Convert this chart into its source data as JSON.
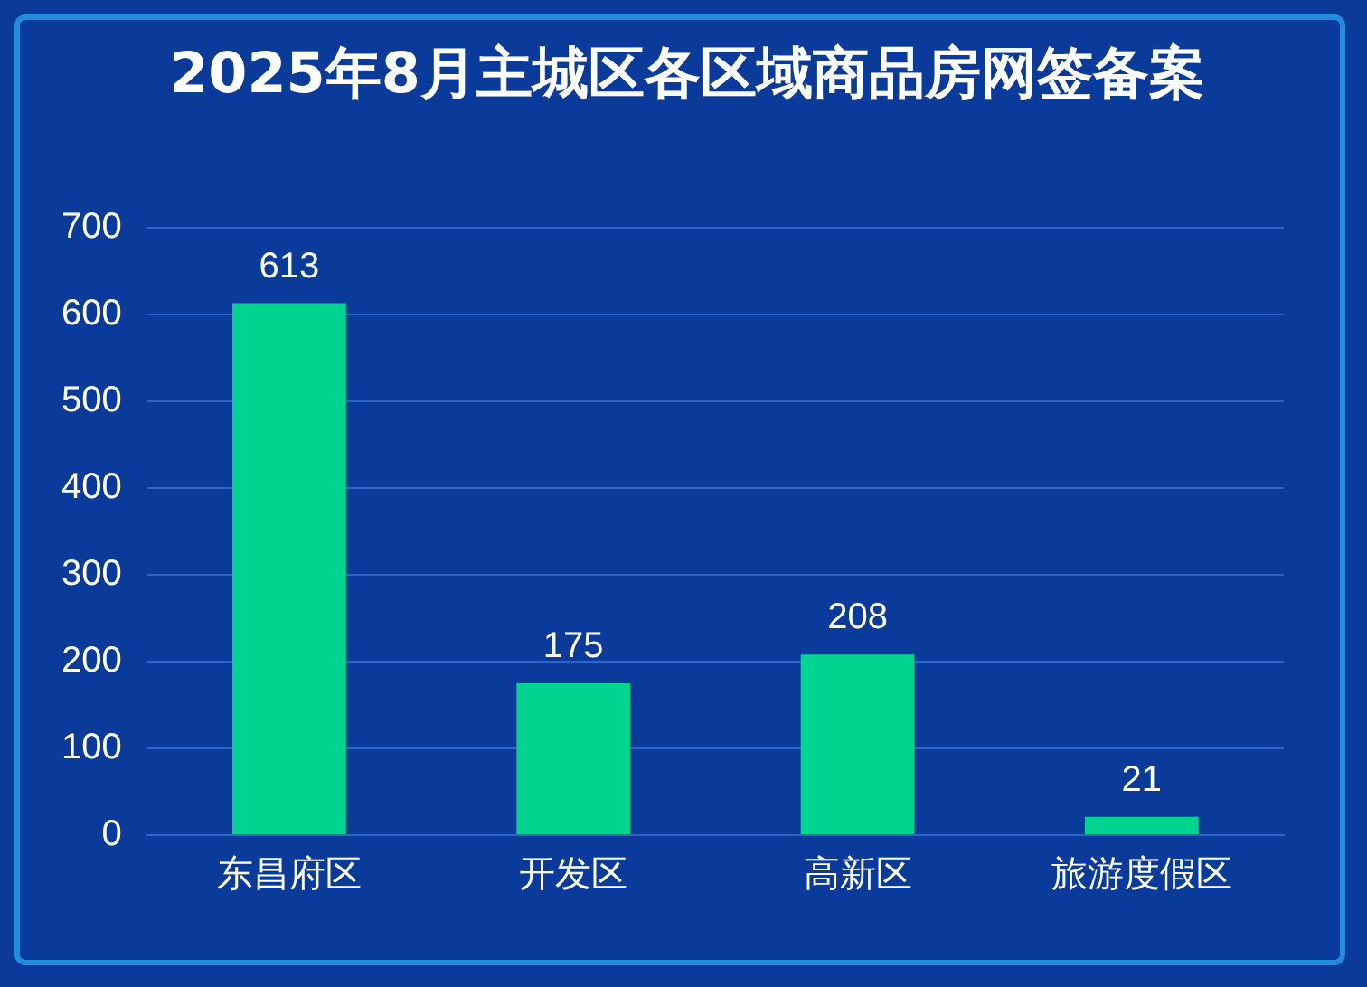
{
  "chart_data": {
    "type": "bar",
    "title": "2025年8月主城区各区域商品房网签备案",
    "categories": [
      "东昌府区",
      "开发区",
      "高新区",
      "旅游度假区"
    ],
    "values": [
      613,
      175,
      208,
      21
    ],
    "color": "#00d48f",
    "ylim": [
      0,
      700
    ],
    "yticks": [
      0,
      100,
      200,
      300,
      400,
      500,
      600,
      700
    ],
    "grid": "y",
    "data_labels": true,
    "legend": false
  }
}
